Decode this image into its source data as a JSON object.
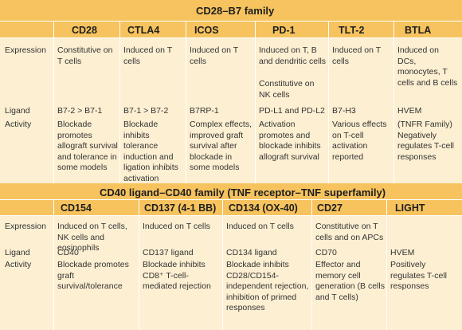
{
  "section1": {
    "family": "CD28–B7 family",
    "columns": [
      "CD28",
      "CTLA4",
      "ICOS",
      "PD-1",
      "TLT-2",
      "BTLA"
    ],
    "row_labels": {
      "expression": "Expression",
      "ligand": "Ligand",
      "activity": "Activity"
    },
    "expression": [
      "Constitutive on T cells",
      "Induced on T cells",
      "Induced on T cells",
      "Induced on T, B and dendritic cells",
      "Induced on T cells",
      "Induced on DCs, monocytes, T cells and B cells"
    ],
    "expression_extra": "Constitutive on NK cells",
    "ligand": [
      "B7-2 > B7-1",
      "B7-1 > B7-2",
      "B7RP-1",
      "PD-L1 and PD-L2",
      "B7-H3",
      "HVEM"
    ],
    "activity": [
      "Blockade promotes allograft survival and tolerance in some models",
      "Blockade inhibits tolerance induction and ligation inhibits activation",
      "Complex effects, improved graft survival after blockade in some models",
      "Activation promotes and blockade inhibits allograft survival",
      "Various effects on T-cell activation reported",
      "(TNFR Family) Negatively regulates T-cell responses"
    ]
  },
  "section2": {
    "family": "CD40 ligand–CD40 family (TNF receptor–TNF superfamily)",
    "columns": [
      "CD154",
      "CD137 (4-1 BB)",
      "CD134 (OX-40)",
      "CD27",
      "LIGHT"
    ],
    "row_labels": {
      "expression": "Expression",
      "ligand": "Ligand",
      "activity": "Activity"
    },
    "expression": [
      "Induced on T cells, NK cells and eosinophils",
      "Induced on T cells",
      "Induced on T cells",
      "Constitutive on T cells and on APCs",
      ""
    ],
    "ligand": [
      "CD40",
      "CD137 ligand",
      "CD134 ligand",
      "CD70",
      "HVEM"
    ],
    "activity": [
      "Blockade promotes graft survival/tolerance",
      "Blockade inhibits CD8⁺ T-cell-mediated rejection",
      "Blockade inhibits CD28/CD154-independent rejection, inhibition of primed responses",
      "Effector and memory cell generation (B cells and T cells)",
      "Positively regulates T-cell responses"
    ]
  }
}
